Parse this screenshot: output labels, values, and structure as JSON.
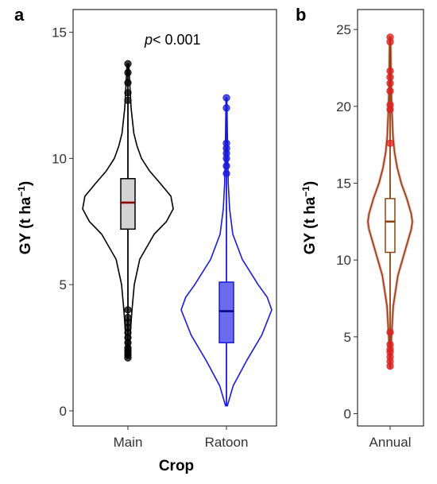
{
  "chart_data": [
    {
      "panel": "a",
      "type": "violin",
      "xlabel": "Crop",
      "ylabel": "GY (t ha",
      "ylabel_sup": "−1",
      "ylabel_close": ")",
      "ylim": [
        -0.6,
        15.9
      ],
      "yticks": [
        "0",
        "5",
        "10",
        "15"
      ],
      "annotation_italic": "p",
      "annotation_rest": "< 0.001",
      "categories": [
        "Main",
        "Ratoon"
      ],
      "series": [
        {
          "category": "Main",
          "color": "#000000",
          "box_fill": "#d3d3d3",
          "median_color": "#8b0000",
          "min": 2.1,
          "q1": 7.2,
          "median": 8.25,
          "q3": 9.2,
          "max": 13.75,
          "outliers": [
            13.75,
            13.4,
            13.0,
            12.6,
            12.3,
            4.0,
            3.7,
            3.5,
            3.3,
            3.1,
            2.9,
            2.7,
            2.5,
            2.4,
            2.3,
            2.2,
            2.1
          ],
          "density": [
            [
              2.1,
              0.02
            ],
            [
              3,
              0.05
            ],
            [
              4,
              0.09
            ],
            [
              5,
              0.14
            ],
            [
              6,
              0.26
            ],
            [
              7,
              0.58
            ],
            [
              7.5,
              0.85
            ],
            [
              8,
              1.0
            ],
            [
              8.5,
              0.95
            ],
            [
              9,
              0.72
            ],
            [
              9.5,
              0.48
            ],
            [
              10,
              0.3
            ],
            [
              10.5,
              0.2
            ],
            [
              11,
              0.13
            ],
            [
              12,
              0.07
            ],
            [
              13,
              0.04
            ],
            [
              13.75,
              0.02
            ]
          ]
        },
        {
          "category": "Ratoon",
          "color": "#1a1adb",
          "box_fill": "#6b6bf0",
          "median_color": "#00008b",
          "min": 0.2,
          "q1": 2.7,
          "median": 3.95,
          "q3": 5.1,
          "max": 12.4,
          "outliers": [
            12.4,
            12.0,
            10.6,
            10.4,
            10.2,
            10.0,
            9.7,
            9.4
          ],
          "density": [
            [
              0.2,
              0.02
            ],
            [
              1,
              0.15
            ],
            [
              2,
              0.45
            ],
            [
              3,
              0.78
            ],
            [
              4,
              1.0
            ],
            [
              4.5,
              0.9
            ],
            [
              5,
              0.7
            ],
            [
              6,
              0.35
            ],
            [
              7,
              0.14
            ],
            [
              8,
              0.07
            ],
            [
              9,
              0.04
            ],
            [
              10,
              0.03
            ],
            [
              11,
              0.02
            ],
            [
              12.4,
              0.01
            ]
          ]
        }
      ]
    },
    {
      "panel": "b",
      "type": "violin",
      "xlabel": "",
      "ylabel": "GY (t ha",
      "ylabel_sup": "−1",
      "ylabel_close": ")",
      "ylim": [
        -0.8,
        26.3
      ],
      "yticks": [
        "0",
        "5",
        "10",
        "15",
        "20",
        "25"
      ],
      "categories": [
        "Annual"
      ],
      "series": [
        {
          "category": "Annual",
          "color": "#e02020",
          "violin_inner_color": "#8b4513",
          "box_color": "#8b4513",
          "box_fill": "#ffffff",
          "median_color": "#8b4513",
          "min": 3.0,
          "q1": 10.5,
          "median": 12.5,
          "q3": 14.0,
          "max": 24.5,
          "outliers": [
            24.5,
            24.2,
            22.3,
            21.9,
            21.5,
            21.0,
            20.1,
            19.8,
            17.6,
            5.3,
            4.5,
            4.2,
            4.0,
            3.7,
            3.4,
            3.1
          ],
          "density": [
            [
              3,
              0.02
            ],
            [
              5,
              0.06
            ],
            [
              7,
              0.14
            ],
            [
              9,
              0.35
            ],
            [
              10.5,
              0.65
            ],
            [
              12,
              0.95
            ],
            [
              12.5,
              1.0
            ],
            [
              13,
              0.95
            ],
            [
              14,
              0.75
            ],
            [
              15,
              0.5
            ],
            [
              16,
              0.32
            ],
            [
              17,
              0.2
            ],
            [
              18,
              0.13
            ],
            [
              20,
              0.07
            ],
            [
              22,
              0.04
            ],
            [
              24.5,
              0.02
            ]
          ]
        }
      ]
    }
  ]
}
